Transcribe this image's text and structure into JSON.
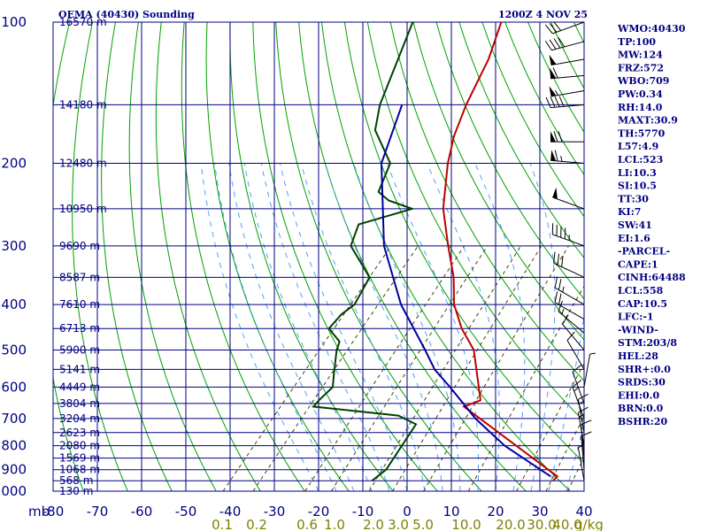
{
  "header": {
    "station": "OEMA (40430) Sounding",
    "time": "1200Z  4 NOV 25"
  },
  "indices": [
    "WMO:40430",
    "TP:100",
    "MW:124",
    "FRZ:572",
    "WBO:709",
    "PW:0.34",
    "RH:14.0",
    "MAXT:30.9",
    "TH:5770",
    "L57:4.9",
    "LCL:523",
    "LI:10.3",
    "SI:10.5",
    "TT:30",
    "KI:7",
    "SW:41",
    "EI:1.6",
    "-PARCEL-",
    "CAPE:1",
    "CINH:64488",
    "LCL:558",
    "CAP:10.5",
    "LFC:-1",
    "-WIND-",
    "STM:203/8",
    "HEL:28",
    "SHR+:0.0",
    "SRDS:30",
    "EHI:0.0",
    "BRN:0.0",
    "BSHR:20"
  ],
  "colors": {
    "grid": "#000080",
    "dry_adiabat": "#00a000",
    "moist_adiabat": "#4f9fff",
    "mixing_ratio": "#404000",
    "temperature": "#c00000",
    "dewpoint": "#004000",
    "parcel": "#0000a0",
    "wind": "#000000"
  },
  "chart_data": {
    "type": "line",
    "title": "OEMA (40430) Sounding",
    "xlabel": "",
    "ylabel": "mb",
    "pressure_range": [
      1000,
      100
    ],
    "temperature_range": [
      -80,
      40
    ],
    "pressure_ticks": [
      100,
      200,
      300,
      400,
      500,
      600,
      700,
      800,
      900,
      1000
    ],
    "temperature_ticks": [
      -80,
      -70,
      -60,
      -50,
      -40,
      -30,
      -20,
      -10,
      0,
      10,
      20,
      30,
      40
    ],
    "mixing_ratio_ticks": [
      "0.1",
      "0.2",
      "0.6",
      "1.0",
      "2.0",
      "3.0",
      "5.0",
      "10.0",
      "20.0",
      "30.0",
      "40.0"
    ],
    "mixing_ratio_unit": "g/kg",
    "height_labels": [
      {
        "p": 100,
        "label": "16570 m"
      },
      {
        "p": 150,
        "label": "14180 m"
      },
      {
        "p": 200,
        "label": "12480 m"
      },
      {
        "p": 250,
        "label": "10950 m"
      },
      {
        "p": 300,
        "label": "9690 m"
      },
      {
        "p": 350,
        "label": "8587 m"
      },
      {
        "p": 400,
        "label": "7610 m"
      },
      {
        "p": 450,
        "label": "6713 m"
      },
      {
        "p": 500,
        "label": "5900 m"
      },
      {
        "p": 550,
        "label": "5141 m"
      },
      {
        "p": 600,
        "label": "4449 m"
      },
      {
        "p": 650,
        "label": "3804 m"
      },
      {
        "p": 700,
        "label": "3204 m"
      },
      {
        "p": 750,
        "label": "2623 m"
      },
      {
        "p": 800,
        "label": "2080 m"
      },
      {
        "p": 850,
        "label": "1569 m"
      },
      {
        "p": 900,
        "label": "1068 m"
      },
      {
        "p": 950,
        "label": "568 m"
      },
      {
        "p": 1000,
        "label": "130 m"
      }
    ],
    "series": [
      {
        "name": "temperature",
        "points": [
          [
            100,
            -72
          ],
          [
            120,
            -67.5
          ],
          [
            150,
            -63.5
          ],
          [
            175,
            -60
          ],
          [
            200,
            -56
          ],
          [
            250,
            -48
          ],
          [
            300,
            -39.5
          ],
          [
            350,
            -32
          ],
          [
            400,
            -26.5
          ],
          [
            450,
            -20
          ],
          [
            500,
            -13
          ],
          [
            600,
            -4.5
          ],
          [
            640,
            -1.5
          ],
          [
            660,
            -4
          ],
          [
            930,
            31
          ],
          [
            950,
            30.9
          ]
        ]
      },
      {
        "name": "dewpoint",
        "points": [
          [
            100,
            -92
          ],
          [
            150,
            -83
          ],
          [
            170,
            -79
          ],
          [
            200,
            -69
          ],
          [
            230,
            -66
          ],
          [
            240,
            -62
          ],
          [
            250,
            -55
          ],
          [
            270,
            -64
          ],
          [
            300,
            -61.5
          ],
          [
            350,
            -51
          ],
          [
            400,
            -49
          ],
          [
            420,
            -50
          ],
          [
            450,
            -50
          ],
          [
            480,
            -45
          ],
          [
            500,
            -44
          ],
          [
            560,
            -40
          ],
          [
            600,
            -37.5
          ],
          [
            640,
            -38
          ],
          [
            660,
            -38
          ],
          [
            690,
            -17
          ],
          [
            720,
            -11.3
          ],
          [
            900,
            -9
          ],
          [
            950,
            -10
          ]
        ]
      },
      {
        "name": "parcel",
        "points": [
          [
            150,
            -78
          ],
          [
            200,
            -71
          ],
          [
            300,
            -54
          ],
          [
            400,
            -38.5
          ],
          [
            500,
            -24
          ],
          [
            550,
            -18
          ],
          [
            600,
            -11
          ],
          [
            700,
            1
          ],
          [
            800,
            13
          ],
          [
            930,
            29.5
          ]
        ]
      }
    ],
    "wind_barbs": [
      {
        "p": 100,
        "dir": 250,
        "spd": 30
      },
      {
        "p": 110,
        "dir": 255,
        "spd": 40
      },
      {
        "p": 120,
        "dir": 260,
        "spd": 50
      },
      {
        "p": 130,
        "dir": 265,
        "spd": 60
      },
      {
        "p": 140,
        "dir": 260,
        "spd": 55
      },
      {
        "p": 150,
        "dir": 265,
        "spd": 40
      },
      {
        "p": 180,
        "dir": 270,
        "spd": 70
      },
      {
        "p": 200,
        "dir": 275,
        "spd": 65
      },
      {
        "p": 250,
        "dir": 290,
        "spd": 50
      },
      {
        "p": 300,
        "dir": 290,
        "spd": 45
      },
      {
        "p": 350,
        "dir": 295,
        "spd": 30
      },
      {
        "p": 400,
        "dir": 300,
        "spd": 25
      },
      {
        "p": 430,
        "dir": 300,
        "spd": 20
      },
      {
        "p": 460,
        "dir": 310,
        "spd": 15
      },
      {
        "p": 500,
        "dir": 320,
        "spd": 10
      },
      {
        "p": 550,
        "dir": 330,
        "spd": 10
      },
      {
        "p": 600,
        "dir": 10,
        "spd": 5
      },
      {
        "p": 650,
        "dir": 340,
        "spd": 10
      },
      {
        "p": 700,
        "dir": 340,
        "spd": 15
      },
      {
        "p": 750,
        "dir": 350,
        "spd": 15
      },
      {
        "p": 800,
        "dir": 350,
        "spd": 15
      },
      {
        "p": 850,
        "dir": 355,
        "spd": 10
      },
      {
        "p": 900,
        "dir": 355,
        "spd": 10
      },
      {
        "p": 950,
        "dir": 350,
        "spd": 5
      }
    ]
  }
}
